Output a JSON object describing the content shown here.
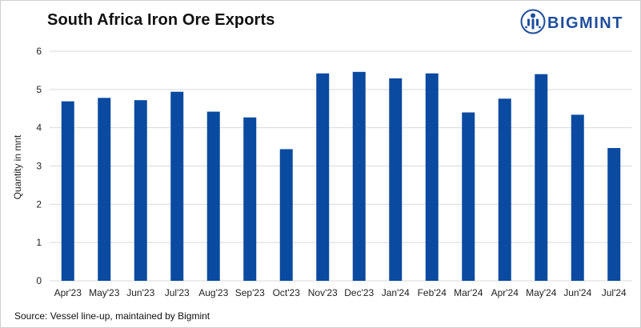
{
  "header": {
    "title": "South Africa Iron Ore Exports",
    "logo_text": "BIGMINT"
  },
  "footer": {
    "source": "Source: Vessel line-up, maintained by Bigmint"
  },
  "colors": {
    "bar": "#0a4aa0",
    "grid": "#d9d9d9",
    "brand": "#1f4e9c"
  },
  "icons": {
    "logo": "bigmint-logo-icon"
  },
  "chart_data": {
    "type": "bar",
    "title": "South Africa Iron Ore Exports",
    "xlabel": "",
    "ylabel": "Quantity in mnt",
    "ylim": [
      0,
      6
    ],
    "yticks": [
      0,
      1,
      2,
      3,
      4,
      5,
      6
    ],
    "grid": true,
    "legend": "none",
    "categories": [
      "Apr'23",
      "May'23",
      "Jun'23",
      "Jul'23",
      "Aug'23",
      "Sep'23",
      "Oct'23",
      "Nov'23",
      "Dec'23",
      "Jan'24",
      "Feb'24",
      "Mar'24",
      "Apr'24",
      "May'24",
      "Jun'24",
      "Jul'24"
    ],
    "values": [
      4.69,
      4.78,
      4.72,
      4.94,
      4.42,
      4.27,
      3.44,
      5.42,
      5.46,
      5.29,
      5.42,
      4.4,
      4.76,
      5.4,
      4.34,
      3.47
    ]
  }
}
